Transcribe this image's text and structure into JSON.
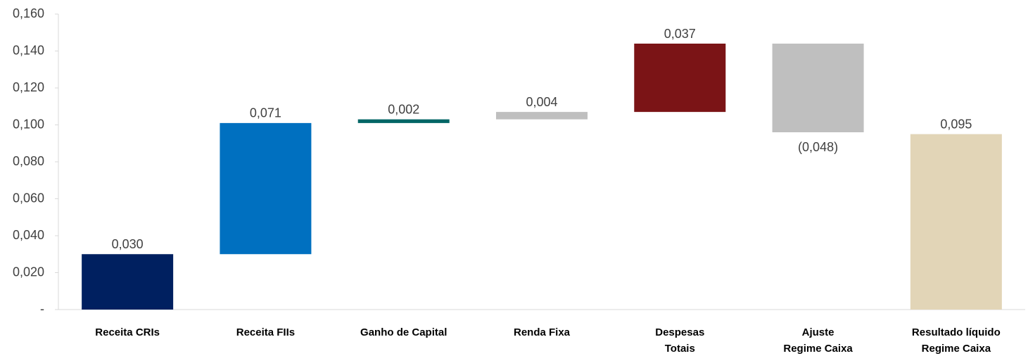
{
  "chart_data": {
    "type": "waterfall",
    "categories": [
      "Receita CRIs",
      "Receita FIIs",
      "Ganho de Capital",
      "Renda Fixa",
      "Despesas\nTotais",
      "Ajuste\nRegime Caixa",
      "Resultado líquido\nRegime  Caixa"
    ],
    "values": [
      0.03,
      0.071,
      0.002,
      0.004,
      0.037,
      -0.048,
      0.095
    ],
    "value_labels": [
      "0,030",
      "0,071",
      "0,002",
      "0,004",
      "0,037",
      "(0,048)",
      "0,095"
    ],
    "colors": [
      "#002060",
      "#0070c0",
      "#006666",
      "#bfbfbf",
      "#7b1416",
      "#bfbfbf",
      "#e2d5b7"
    ],
    "ylim": [
      0,
      0.16
    ],
    "yticks": [
      {
        "value": 0,
        "label": "-"
      },
      {
        "value": 0.02,
        "label": "0,020"
      },
      {
        "value": 0.04,
        "label": "0,040"
      },
      {
        "value": 0.06,
        "label": "0,060"
      },
      {
        "value": 0.08,
        "label": "0,080"
      },
      {
        "value": 0.1,
        "label": "0,100"
      },
      {
        "value": 0.12,
        "label": "0,120"
      },
      {
        "value": 0.14,
        "label": "0,140"
      },
      {
        "value": 0.16,
        "label": "0,160"
      }
    ],
    "grid": false
  }
}
